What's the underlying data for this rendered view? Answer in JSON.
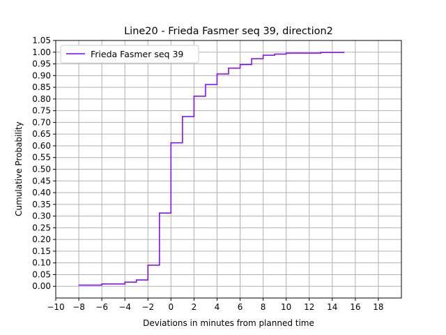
{
  "chart_data": {
    "type": "line",
    "title": "Line20 - Frieda Fasmer seq 39, direction2",
    "xlabel": "Deviations in minutes from planned time",
    "ylabel": "Cumulative Probability",
    "xlim": [
      -10,
      20
    ],
    "ylim": [
      -0.05,
      1.05
    ],
    "x_ticks": [
      -10,
      -8,
      -6,
      -4,
      -2,
      0,
      2,
      4,
      6,
      8,
      10,
      12,
      14,
      16,
      18
    ],
    "x_tick_labels": [
      "−10",
      "−8",
      "−6",
      "−4",
      "−2",
      "0",
      "2",
      "4",
      "6",
      "8",
      "10",
      "12",
      "14",
      "16",
      "18"
    ],
    "y_ticks": [
      0.0,
      0.05,
      0.1,
      0.15,
      0.2,
      0.25,
      0.3,
      0.35,
      0.4,
      0.45,
      0.5,
      0.55,
      0.6,
      0.65,
      0.7,
      0.75,
      0.8,
      0.85,
      0.9,
      0.95,
      1.0,
      1.05
    ],
    "y_tick_labels": [
      "0.00",
      "0.05",
      "0.10",
      "0.15",
      "0.20",
      "0.25",
      "0.30",
      "0.35",
      "0.40",
      "0.45",
      "0.50",
      "0.55",
      "0.60",
      "0.65",
      "0.70",
      "0.75",
      "0.80",
      "0.85",
      "0.90",
      "0.95",
      "1.00",
      "1.05"
    ],
    "grid": true,
    "legend_position": "top-left",
    "series": [
      {
        "name": "Frieda Fasmer seq 39",
        "color": "#7f00ff",
        "step": "post",
        "x": [
          -8,
          -6,
          -4,
          -3,
          -2,
          -1,
          0,
          1,
          2,
          3,
          4,
          5,
          6,
          7,
          8,
          9,
          10,
          13,
          15
        ],
        "y": [
          0.005,
          0.01,
          0.018,
          0.027,
          0.09,
          0.313,
          0.613,
          0.725,
          0.812,
          0.862,
          0.907,
          0.932,
          0.947,
          0.972,
          0.987,
          0.992,
          0.996,
          0.999,
          1.0
        ]
      }
    ]
  }
}
